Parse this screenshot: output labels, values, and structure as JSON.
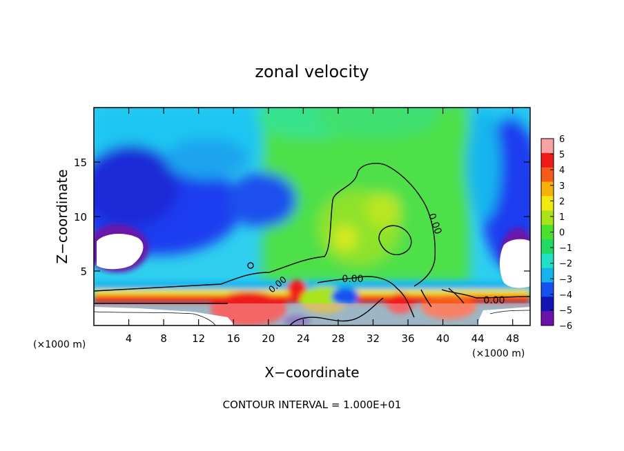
{
  "chart_data": {
    "type": "heatmap",
    "title": "zonal velocity",
    "xlabel": "X−coordinate",
    "ylabel": "Z−coordinate",
    "x_unit_left": "(×1000 m)",
    "x_unit_right": "(×1000 m)",
    "footer": "CONTOUR INTERVAL = 1.000E+01",
    "xlim": [
      0,
      50
    ],
    "ylim": [
      0,
      20
    ],
    "x_ticks": [
      4,
      8,
      12,
      16,
      20,
      24,
      28,
      32,
      36,
      40,
      44,
      48
    ],
    "y_ticks": [
      5,
      10,
      15
    ],
    "colorbar": {
      "ticks": [
        6,
        5,
        4,
        3,
        2,
        1,
        0,
        -1,
        -2,
        -3,
        -4,
        -5,
        -6
      ],
      "colors": [
        "#f7a3a3",
        "#ef1b1b",
        "#f55c1c",
        "#f8b10a",
        "#f1ea0d",
        "#a9e41a",
        "#48e12b",
        "#22d964",
        "#1fe1c6",
        "#15b3ee",
        "#1352f0",
        "#1414b4",
        "#6a12a9"
      ]
    },
    "contour_labels": [
      "0.00",
      "0.00",
      "0.00",
      "0.00"
    ],
    "grid": false,
    "legend": "colorbar-right"
  }
}
